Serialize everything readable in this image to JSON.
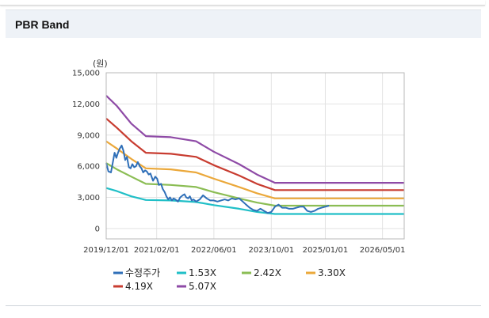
{
  "panel": {
    "title": "PBR Band"
  },
  "chart_data": {
    "type": "line",
    "title": "PBR Band",
    "unit_label": "(원)",
    "ylim": [
      -1000,
      15000
    ],
    "yticks": [
      0,
      3000,
      6000,
      9000,
      12000,
      15000
    ],
    "ytick_labels": [
      "0",
      "3,000",
      "6,000",
      "9,000",
      "12,000",
      "15,000"
    ],
    "xlim": [
      "2019-12-01",
      "2026-11-01"
    ],
    "xticks": [
      "2019-12-01",
      "2021-02-01",
      "2022-06-01",
      "2023-10-01",
      "2025-01-01",
      "2026-05-01"
    ],
    "xtick_labels": [
      "2019/12/01",
      "2021/02/01",
      "2022/06/01",
      "2023/10/01",
      "2025/01/01",
      "2026/05/01"
    ],
    "grid": true,
    "legend_position": "bottom",
    "series": [
      {
        "name": "5.07X",
        "color": "#8e4aa6",
        "points": [
          [
            "2019-12-01",
            12800
          ],
          [
            "2020-03-01",
            11800
          ],
          [
            "2020-07-01",
            10100
          ],
          [
            "2020-11-01",
            8900
          ],
          [
            "2021-06-01",
            8800
          ],
          [
            "2022-01-01",
            8400
          ],
          [
            "2022-06-01",
            7400
          ],
          [
            "2023-01-01",
            6200
          ],
          [
            "2023-06-01",
            5200
          ],
          [
            "2023-11-01",
            4400
          ],
          [
            "2024-06-01",
            4400
          ],
          [
            "2026-11-01",
            4400
          ]
        ]
      },
      {
        "name": "4.19X",
        "color": "#c83c30",
        "points": [
          [
            "2019-12-01",
            10600
          ],
          [
            "2020-03-01",
            9700
          ],
          [
            "2020-07-01",
            8400
          ],
          [
            "2020-11-01",
            7300
          ],
          [
            "2021-06-01",
            7200
          ],
          [
            "2022-01-01",
            6900
          ],
          [
            "2022-06-01",
            6100
          ],
          [
            "2023-01-01",
            5100
          ],
          [
            "2023-06-01",
            4300
          ],
          [
            "2023-11-01",
            3700
          ],
          [
            "2024-06-01",
            3700
          ],
          [
            "2026-11-01",
            3700
          ]
        ]
      },
      {
        "name": "3.30X",
        "color": "#eba83a",
        "points": [
          [
            "2019-12-01",
            8400
          ],
          [
            "2020-03-01",
            7700
          ],
          [
            "2020-07-01",
            6700
          ],
          [
            "2020-11-01",
            5800
          ],
          [
            "2021-06-01",
            5700
          ],
          [
            "2022-01-01",
            5400
          ],
          [
            "2022-06-01",
            4800
          ],
          [
            "2023-01-01",
            4000
          ],
          [
            "2023-06-01",
            3400
          ],
          [
            "2023-11-01",
            2900
          ],
          [
            "2024-06-01",
            2900
          ],
          [
            "2026-11-01",
            2900
          ]
        ]
      },
      {
        "name": "2.42X",
        "color": "#8bbd54",
        "points": [
          [
            "2019-12-01",
            6300
          ],
          [
            "2020-03-01",
            5700
          ],
          [
            "2020-07-01",
            5000
          ],
          [
            "2020-11-01",
            4300
          ],
          [
            "2021-06-01",
            4200
          ],
          [
            "2022-01-01",
            4000
          ],
          [
            "2022-06-01",
            3500
          ],
          [
            "2023-01-01",
            2900
          ],
          [
            "2023-06-01",
            2500
          ],
          [
            "2023-11-01",
            2200
          ],
          [
            "2024-06-01",
            2200
          ],
          [
            "2026-11-01",
            2200
          ]
        ]
      },
      {
        "name": "1.53X",
        "color": "#20bfc7",
        "points": [
          [
            "2019-12-01",
            3900
          ],
          [
            "2020-03-01",
            3600
          ],
          [
            "2020-07-01",
            3100
          ],
          [
            "2020-11-01",
            2750
          ],
          [
            "2021-06-01",
            2700
          ],
          [
            "2022-01-01",
            2550
          ],
          [
            "2022-06-01",
            2250
          ],
          [
            "2023-01-01",
            1900
          ],
          [
            "2023-06-01",
            1600
          ],
          [
            "2023-11-01",
            1400
          ],
          [
            "2024-06-01",
            1400
          ],
          [
            "2026-11-01",
            1400
          ]
        ]
      },
      {
        "name": "수정주가",
        "color": "#2f6fb8",
        "points": [
          [
            "2019-12-01",
            6300
          ],
          [
            "2019-12-20",
            5500
          ],
          [
            "2020-01-10",
            5400
          ],
          [
            "2020-01-25",
            6300
          ],
          [
            "2020-02-10",
            7300
          ],
          [
            "2020-02-25",
            6800
          ],
          [
            "2020-03-10",
            7300
          ],
          [
            "2020-03-25",
            7700
          ],
          [
            "2020-04-10",
            8000
          ],
          [
            "2020-04-25",
            7500
          ],
          [
            "2020-05-10",
            6600
          ],
          [
            "2020-05-25",
            6900
          ],
          [
            "2020-06-10",
            5900
          ],
          [
            "2020-06-25",
            5800
          ],
          [
            "2020-07-10",
            6200
          ],
          [
            "2020-07-25",
            5900
          ],
          [
            "2020-08-10",
            6000
          ],
          [
            "2020-08-25",
            6400
          ],
          [
            "2020-09-10",
            6000
          ],
          [
            "2020-09-25",
            5800
          ],
          [
            "2020-10-10",
            5400
          ],
          [
            "2020-10-25",
            5600
          ],
          [
            "2020-11-10",
            5500
          ],
          [
            "2020-11-25",
            5200
          ],
          [
            "2020-12-10",
            5300
          ],
          [
            "2021-01-01",
            4600
          ],
          [
            "2021-01-20",
            5000
          ],
          [
            "2021-02-05",
            4800
          ],
          [
            "2021-02-20",
            4200
          ],
          [
            "2021-03-10",
            4300
          ],
          [
            "2021-03-25",
            3800
          ],
          [
            "2021-04-10",
            3500
          ],
          [
            "2021-04-25",
            3100
          ],
          [
            "2021-05-10",
            2800
          ],
          [
            "2021-05-25",
            3000
          ],
          [
            "2021-06-10",
            2700
          ],
          [
            "2021-06-25",
            2900
          ],
          [
            "2021-07-10",
            2800
          ],
          [
            "2021-08-01",
            2600
          ],
          [
            "2021-08-20",
            3000
          ],
          [
            "2021-09-10",
            3200
          ],
          [
            "2021-09-25",
            3300
          ],
          [
            "2021-10-10",
            3000
          ],
          [
            "2021-10-25",
            2900
          ],
          [
            "2021-11-10",
            3100
          ],
          [
            "2021-11-25",
            2700
          ],
          [
            "2021-12-10",
            2800
          ],
          [
            "2022-01-01",
            2600
          ],
          [
            "2022-02-01",
            2800
          ],
          [
            "2022-03-01",
            3200
          ],
          [
            "2022-04-01",
            2900
          ],
          [
            "2022-05-01",
            2700
          ],
          [
            "2022-06-01",
            2700
          ],
          [
            "2022-07-01",
            2600
          ],
          [
            "2022-08-01",
            2700
          ],
          [
            "2022-09-01",
            2800
          ],
          [
            "2022-10-01",
            2700
          ],
          [
            "2022-11-01",
            2900
          ],
          [
            "2022-12-01",
            2800
          ],
          [
            "2023-01-01",
            2900
          ],
          [
            "2023-02-01",
            2600
          ],
          [
            "2023-03-01",
            2300
          ],
          [
            "2023-04-01",
            2000
          ],
          [
            "2023-05-01",
            1800
          ],
          [
            "2023-06-01",
            1700
          ],
          [
            "2023-07-01",
            1900
          ],
          [
            "2023-08-01",
            1700
          ],
          [
            "2023-09-01",
            1500
          ],
          [
            "2023-10-01",
            1600
          ],
          [
            "2023-11-01",
            2100
          ],
          [
            "2023-12-01",
            2300
          ],
          [
            "2024-01-01",
            2000
          ],
          [
            "2024-02-01",
            2000
          ],
          [
            "2024-03-01",
            1900
          ],
          [
            "2024-04-01",
            1900
          ],
          [
            "2024-05-01",
            2000
          ],
          [
            "2024-06-01",
            2100
          ],
          [
            "2024-07-01",
            2100
          ],
          [
            "2024-08-01",
            1700
          ],
          [
            "2024-09-01",
            1600
          ],
          [
            "2024-10-01",
            1700
          ],
          [
            "2024-11-01",
            1900
          ],
          [
            "2024-12-01",
            2000
          ],
          [
            "2025-01-01",
            2100
          ],
          [
            "2025-02-01",
            2200
          ]
        ]
      }
    ],
    "legend_order": [
      "수정주가",
      "1.53X",
      "2.42X",
      "3.30X",
      "4.19X",
      "5.07X"
    ]
  }
}
